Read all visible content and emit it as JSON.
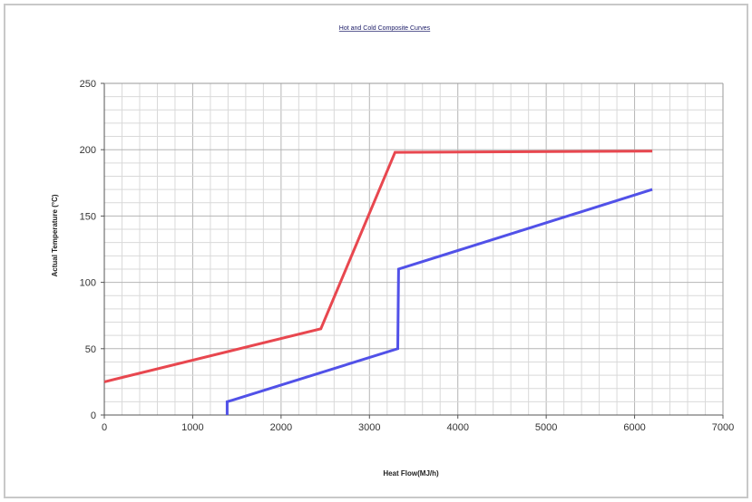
{
  "chart_data": {
    "type": "line",
    "title": "Hot and Cold Composite Curves",
    "xlabel": "Heat Flow(MJ/h)",
    "ylabel": "Actual Temperature (°C)",
    "xlim": [
      0,
      7000
    ],
    "ylim": [
      0,
      250
    ],
    "xticks": [
      "0",
      "1000",
      "2000",
      "3000",
      "4000",
      "5000",
      "6000",
      "7000"
    ],
    "yticks": [
      "0",
      "50",
      "100",
      "150",
      "200",
      "250"
    ],
    "grid": true,
    "legend": "none",
    "series": [
      {
        "color": "#e8474f",
        "points": [
          [
            0,
            25
          ],
          [
            2450,
            65
          ],
          [
            3290,
            198
          ],
          [
            6200,
            199
          ]
        ]
      },
      {
        "color": "#5151e8",
        "points": [
          [
            1390,
            0
          ],
          [
            1390,
            10
          ],
          [
            3320,
            50
          ],
          [
            3330,
            110
          ],
          [
            6200,
            170
          ]
        ]
      }
    ]
  }
}
